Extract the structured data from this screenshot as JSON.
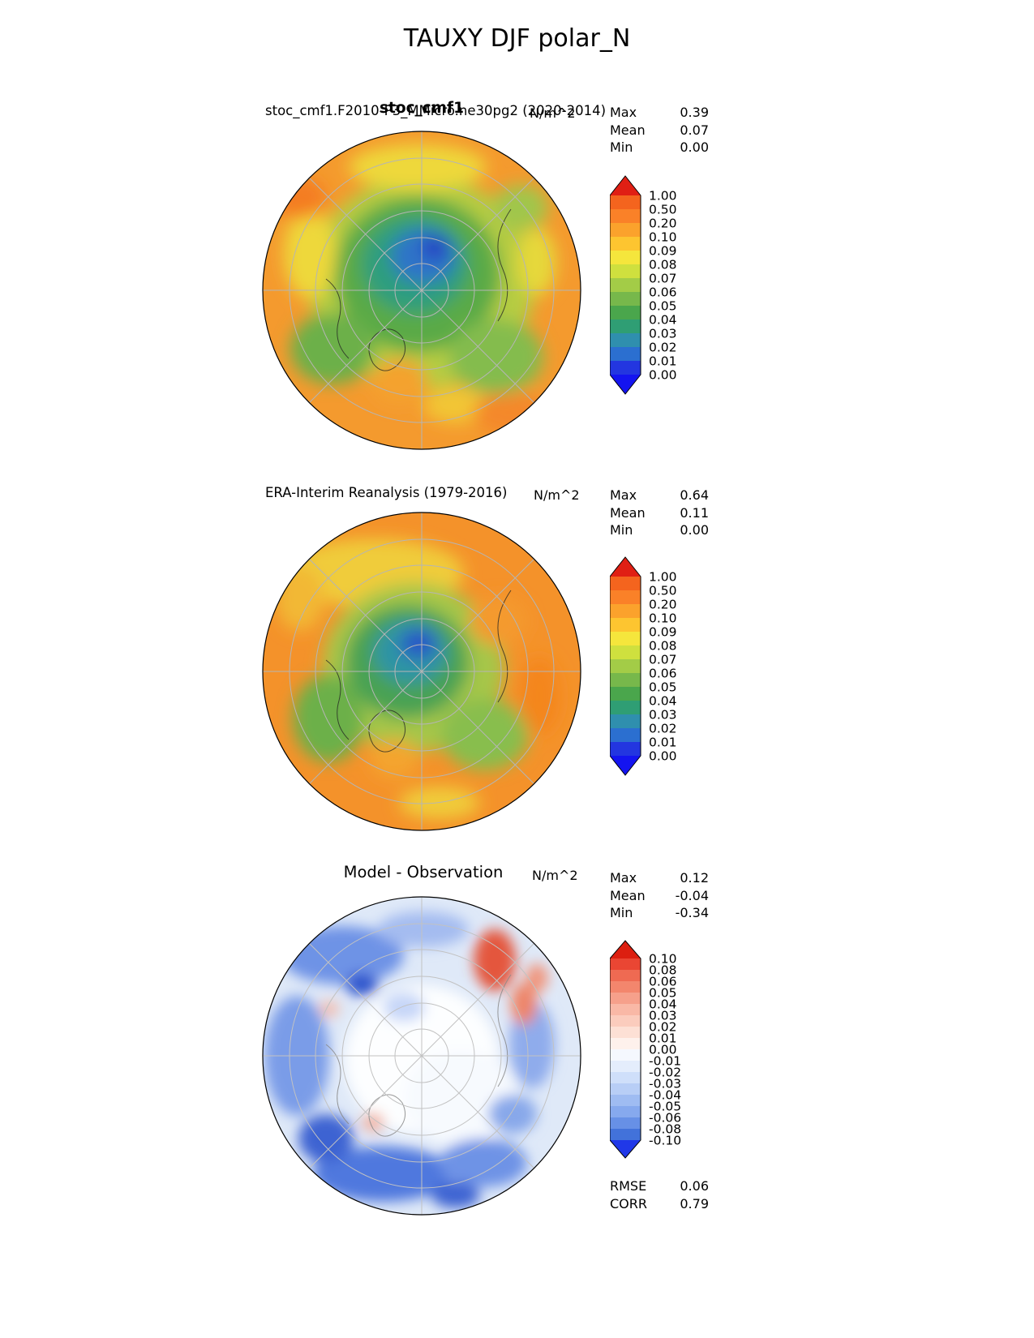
{
  "title": "TAUXY DJF polar_N",
  "stats_labels": {
    "max": "Max",
    "mean": "Mean",
    "min": "Min",
    "rmse": "RMSE",
    "corr": "CORR"
  },
  "panels": [
    {
      "case_label": "stoc_cmf1.F2010-P3_MMicro.ne30pg2 (2020-2014)",
      "overlay_label": "stoc_cmf1",
      "units": "N/m^2",
      "stats": {
        "max": "0.39",
        "mean": "0.07",
        "min": "0.00"
      }
    },
    {
      "title": "ERA-Interim Reanalysis (1979-2016)",
      "units": "N/m^2",
      "stats": {
        "max": "0.64",
        "mean": "0.11",
        "min": "0.00"
      }
    },
    {
      "title": "Model - Observation",
      "units": "N/m^2",
      "stats": {
        "max": "0.12",
        "mean": "-0.04",
        "min": "-0.34"
      },
      "rmse": "0.06",
      "corr": "0.79"
    }
  ],
  "colorbars": {
    "full": {
      "ticks": [
        "1.00",
        "0.50",
        "0.20",
        "0.10",
        "0.09",
        "0.08",
        "0.07",
        "0.06",
        "0.05",
        "0.04",
        "0.03",
        "0.02",
        "0.01",
        "0.00"
      ],
      "colors": [
        "#f4641e",
        "#fa8128",
        "#fba22c",
        "#fdc530",
        "#f5e63c",
        "#cfe03e",
        "#a3cc47",
        "#77b84b",
        "#4aa64c",
        "#2f9e74",
        "#2f8fae",
        "#2b6fd0",
        "#2336e0"
      ],
      "over": "#e01f14",
      "under": "#1414f0"
    },
    "diff": {
      "ticks": [
        "0.10",
        "0.08",
        "0.06",
        "0.05",
        "0.04",
        "0.03",
        "0.02",
        "0.01",
        "0.00",
        "-0.01",
        "-0.02",
        "-0.03",
        "-0.04",
        "-0.05",
        "-0.06",
        "-0.08",
        "-0.10"
      ],
      "colors": [
        "#ea4633",
        "#ef6a52",
        "#f3866d",
        "#f6a08b",
        "#f9b8a6",
        "#fbccbd",
        "#fde0d5",
        "#fef1ec",
        "#f5f8fe",
        "#e4edfc",
        "#cfdffa",
        "#b8cef6",
        "#9fbcf2",
        "#86a9ee",
        "#6790e6",
        "#4272da"
      ],
      "over": "#dc1f10",
      "under": "#2038e8"
    }
  },
  "chart_data": {
    "type": "heatmap",
    "subtype": "polar-stereographic-contour-map",
    "variable": "TAUXY",
    "season": "DJF",
    "region": "polar_N",
    "units": "N/m^2",
    "title": "TAUXY DJF polar_N",
    "levels_model_obs": [
      0.0,
      0.01,
      0.02,
      0.03,
      0.04,
      0.05,
      0.06,
      0.07,
      0.08,
      0.09,
      0.1,
      0.2,
      0.5,
      1.0
    ],
    "levels_diff": [
      -0.1,
      -0.08,
      -0.06,
      -0.05,
      -0.04,
      -0.03,
      -0.02,
      -0.01,
      0.0,
      0.01,
      0.02,
      0.03,
      0.04,
      0.05,
      0.06,
      0.08,
      0.1
    ],
    "panels": [
      {
        "name": "stoc_cmf1",
        "case": "stoc_cmf1.F2010-P3_MMicro.ne30pg2",
        "period": "2020-2014",
        "max": 0.39,
        "mean": 0.07,
        "min": 0.0
      },
      {
        "name": "ERA-Interim Reanalysis",
        "period": "1979-2016",
        "max": 0.64,
        "mean": 0.11,
        "min": 0.0
      },
      {
        "name": "Model - Observation",
        "max": 0.12,
        "mean": -0.04,
        "min": -0.34,
        "rmse": 0.06,
        "corr": 0.79
      }
    ]
  }
}
